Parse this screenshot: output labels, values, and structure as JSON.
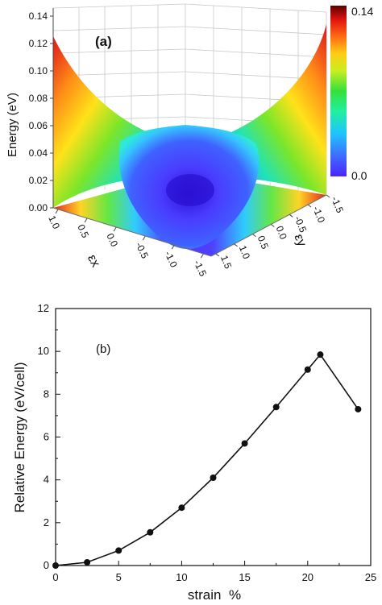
{
  "chart_data": [
    {
      "panel": "(a)",
      "type": "surface3d",
      "title": "",
      "zlabel": "Energy (eV)",
      "xlabel": "εx",
      "ylabel": "εy",
      "zticks": [
        "0.00",
        "0.02",
        "0.04",
        "0.06",
        "0.08",
        "0.10",
        "0.12",
        "0.14"
      ],
      "xticks": [
        "1.0",
        "0.5",
        "0.0",
        "-0.5",
        "-1.0",
        "-1.5"
      ],
      "yticks": [
        "-1.5",
        "-1.0",
        "-0.5",
        "0.0",
        "0.5",
        "1.0",
        "1.5"
      ],
      "colorbar": {
        "max_label": "0.14",
        "min_label": "0.0"
      },
      "colors": {
        "low": "#4a2cff",
        "high": "#6a0000"
      }
    },
    {
      "panel": "(b)",
      "type": "line",
      "title": "",
      "xlabel": "strain  %",
      "ylabel": "Relative Energy (eV/cell)",
      "xlim": [
        0,
        25
      ],
      "ylim": [
        0,
        12
      ],
      "xticks": [
        0,
        5,
        10,
        15,
        20,
        25
      ],
      "yticks": [
        0,
        2,
        4,
        6,
        8,
        10,
        12
      ],
      "grid": false,
      "series": [
        {
          "x": [
            0,
            2.5,
            5,
            7.5,
            10,
            12.5,
            15,
            17.5,
            20,
            21,
            24
          ],
          "y": [
            0,
            0.15,
            0.7,
            1.55,
            2.7,
            4.1,
            5.7,
            7.4,
            9.15,
            9.85,
            7.3
          ]
        }
      ]
    }
  ]
}
